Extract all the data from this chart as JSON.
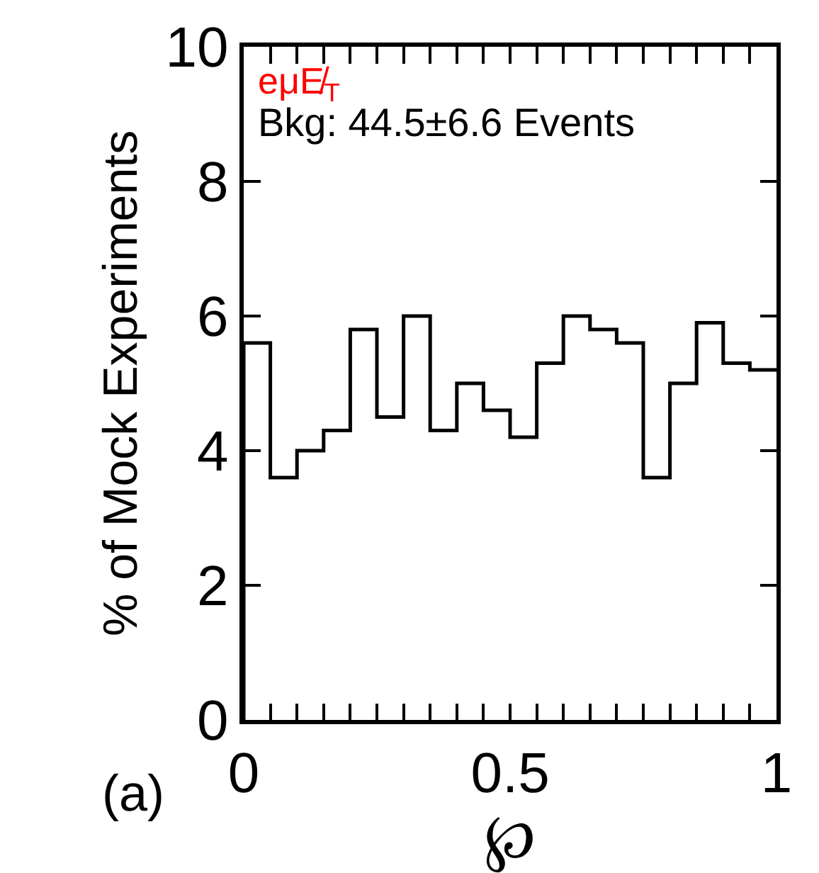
{
  "chart_data": {
    "type": "histogram",
    "xlabel": "℘",
    "ylabel": "% of Mock Experiments",
    "annotations": [
      "eμE̸$_{T}$",
      "Bkg: 44.5±6.6 Events",
      "(a)"
    ],
    "bins": [
      0,
      0.05,
      0.1,
      0.15,
      0.2,
      0.25,
      0.3,
      0.35,
      0.4,
      0.45,
      0.5,
      0.55,
      0.6,
      0.65,
      0.7,
      0.75,
      0.8,
      0.85,
      0.9,
      0.95,
      1
    ],
    "values": [
      5.6,
      3.6,
      4.0,
      4.3,
      5.8,
      4.5,
      6.0,
      4.3,
      5.0,
      4.6,
      4.2,
      5.3,
      6.0,
      5.8,
      5.6,
      3.6,
      5.0,
      5.9,
      5.3,
      5.2
    ],
    "color": "#000000",
    "xlim": [
      0,
      1
    ],
    "ylim": [
      0,
      10
    ],
    "xticks": [
      0,
      {
        "value": 0.05,
        "label": null
      },
      {
        "value": 0.1,
        "label": null
      },
      {
        "value": 0.15,
        "label": null
      },
      {
        "value": 0.2,
        "label": null
      },
      {
        "value": 0.25,
        "label": null
      },
      {
        "value": 0.3,
        "label": null
      },
      {
        "value": 0.35,
        "label": null
      },
      {
        "value": 0.4,
        "label": null
      },
      {
        "value": 0.45,
        "label": null
      },
      0.5,
      {
        "value": 0.55,
        "label": null
      },
      {
        "value": 0.6,
        "label": null
      },
      {
        "value": 0.65,
        "label": null
      },
      {
        "value": 0.7,
        "label": null
      },
      {
        "value": 0.75,
        "label": null
      },
      {
        "value": 0.8,
        "label": null
      },
      {
        "value": 0.85,
        "label": null
      },
      {
        "value": 0.9,
        "label": null
      },
      {
        "value": 0.95,
        "label": null
      },
      1
    ],
    "yticks": [
      0,
      2,
      4,
      6,
      8,
      10
    ]
  }
}
